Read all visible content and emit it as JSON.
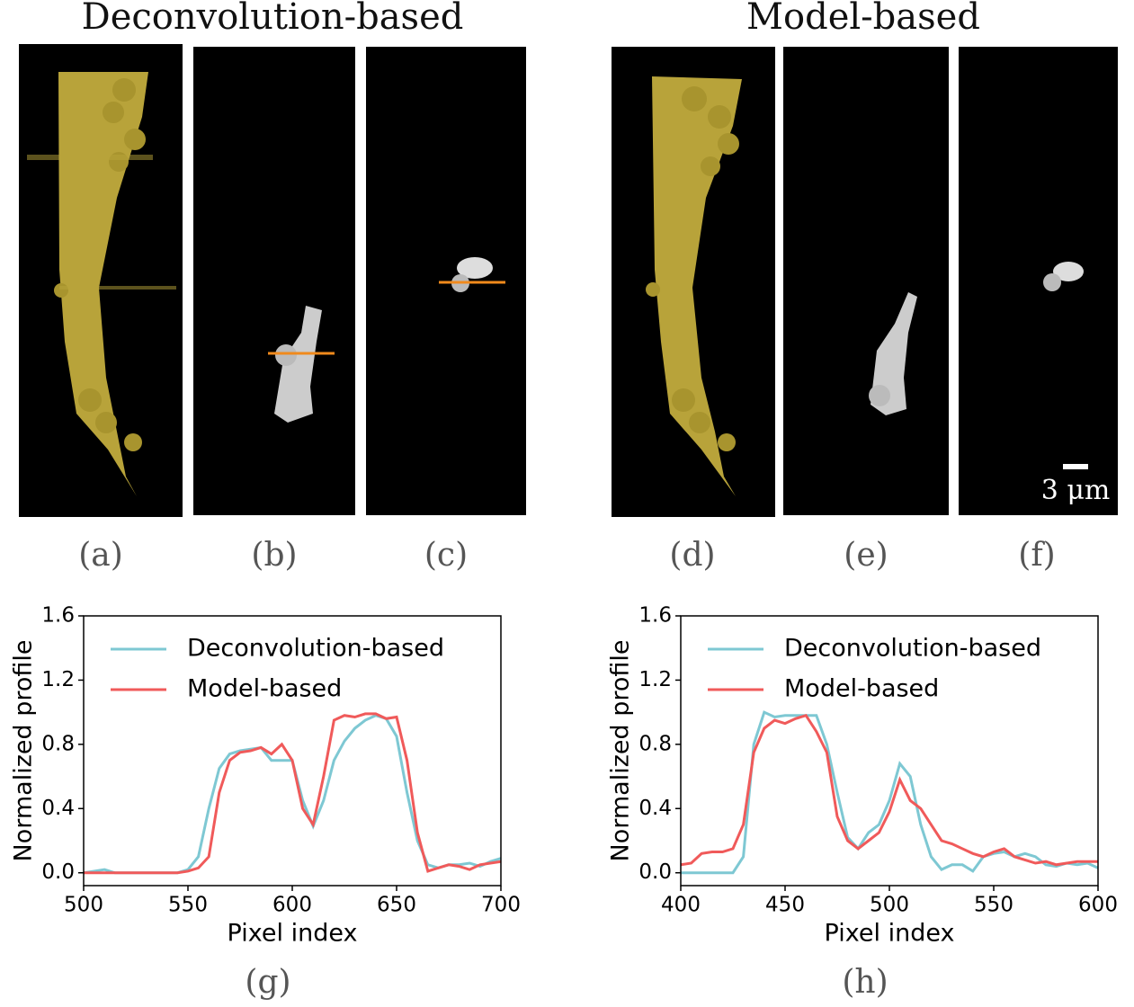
{
  "titles": [
    "Deconvolution-based",
    "Model-based"
  ],
  "panel_labels": [
    "(a)",
    "(b)",
    "(c)",
    "(d)",
    "(e)",
    "(f)"
  ],
  "scale_bar": "3 μm",
  "chart_data": [
    {
      "type": "line",
      "panel_label": "(g)",
      "xlabel": "Pixel index",
      "ylabel": "Normalized profile",
      "x": [
        500,
        505,
        510,
        515,
        520,
        525,
        530,
        535,
        540,
        545,
        550,
        555,
        560,
        565,
        570,
        575,
        580,
        585,
        590,
        595,
        600,
        605,
        610,
        615,
        620,
        625,
        630,
        635,
        640,
        645,
        650,
        655,
        660,
        665,
        670,
        675,
        680,
        685,
        690,
        695,
        700
      ],
      "series": [
        {
          "name": "Deconvolution-based",
          "color": "#7ec8d3",
          "values": [
            0,
            0.01,
            0.02,
            0,
            0,
            0,
            0,
            0,
            0,
            0,
            0.02,
            0.1,
            0.4,
            0.65,
            0.74,
            0.76,
            0.77,
            0.78,
            0.7,
            0.7,
            0.7,
            0.45,
            0.29,
            0.45,
            0.7,
            0.82,
            0.9,
            0.95,
            0.98,
            0.96,
            0.85,
            0.5,
            0.2,
            0.05,
            0.03,
            0.05,
            0.05,
            0.06,
            0.04,
            0.07,
            0.09
          ]
        },
        {
          "name": "Model-based",
          "color": "#f05a5a",
          "values": [
            0,
            0,
            0,
            0,
            0,
            0,
            0,
            0,
            0,
            0,
            0.01,
            0.03,
            0.1,
            0.5,
            0.7,
            0.75,
            0.76,
            0.78,
            0.74,
            0.8,
            0.7,
            0.4,
            0.3,
            0.6,
            0.95,
            0.98,
            0.97,
            0.99,
            0.99,
            0.96,
            0.97,
            0.7,
            0.25,
            0.01,
            0.03,
            0.05,
            0.04,
            0.02,
            0.05,
            0.06,
            0.07
          ]
        }
      ],
      "xlim": [
        500,
        700
      ],
      "ylim": [
        -0.08,
        1.6
      ],
      "xticks": [
        500,
        550,
        600,
        650,
        700
      ],
      "yticks": [
        {
          "value": 0,
          "label": "0.0"
        },
        0.4,
        0.8,
        1.2,
        1.6
      ],
      "legend": "upper left"
    },
    {
      "type": "line",
      "panel_label": "(h)",
      "xlabel": "Pixel index",
      "ylabel": "Normalized profile",
      "x": [
        400,
        405,
        410,
        415,
        420,
        425,
        430,
        435,
        440,
        445,
        450,
        455,
        460,
        465,
        470,
        475,
        480,
        485,
        490,
        495,
        500,
        505,
        510,
        515,
        520,
        525,
        530,
        535,
        540,
        545,
        550,
        555,
        560,
        565,
        570,
        575,
        580,
        585,
        590,
        595,
        600
      ],
      "series": [
        {
          "name": "Deconvolution-based",
          "color": "#7ec8d3",
          "values": [
            0,
            0,
            0,
            0,
            0,
            0,
            0.1,
            0.8,
            1.0,
            0.97,
            0.98,
            0.98,
            0.98,
            0.98,
            0.8,
            0.5,
            0.22,
            0.15,
            0.25,
            0.3,
            0.45,
            0.68,
            0.6,
            0.3,
            0.1,
            0.02,
            0.05,
            0.05,
            0.01,
            0.1,
            0.12,
            0.13,
            0.1,
            0.12,
            0.1,
            0.05,
            0.04,
            0.06,
            0.05,
            0.06,
            0.03
          ]
        },
        {
          "name": "Model-based",
          "color": "#f05a5a",
          "values": [
            0.05,
            0.06,
            0.12,
            0.13,
            0.13,
            0.15,
            0.3,
            0.75,
            0.9,
            0.95,
            0.93,
            0.96,
            0.98,
            0.88,
            0.75,
            0.35,
            0.2,
            0.15,
            0.2,
            0.25,
            0.38,
            0.58,
            0.45,
            0.4,
            0.3,
            0.2,
            0.18,
            0.15,
            0.12,
            0.1,
            0.13,
            0.15,
            0.1,
            0.08,
            0.06,
            0.07,
            0.05,
            0.06,
            0.07,
            0.07,
            0.07
          ]
        }
      ],
      "xlim": [
        400,
        600
      ],
      "ylim": [
        -0.08,
        1.6
      ],
      "xticks": [
        400,
        450,
        500,
        550,
        600
      ],
      "yticks": [
        {
          "value": 0,
          "label": "0.0"
        },
        0.4,
        0.8,
        1.2,
        1.6
      ],
      "legend": "upper left"
    }
  ]
}
